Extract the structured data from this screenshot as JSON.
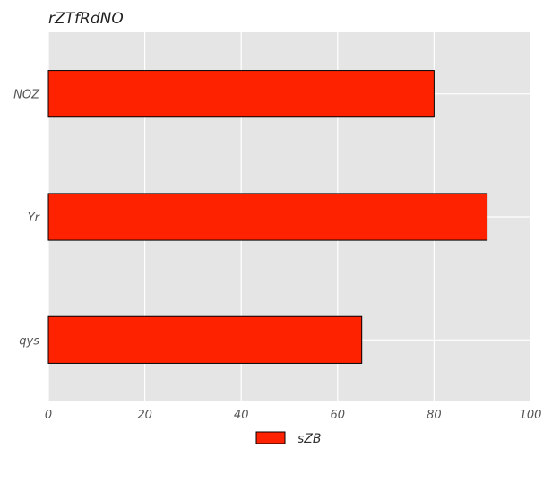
{
  "chart_data": {
    "type": "bar",
    "orientation": "horizontal",
    "title": "rZTfRdNO",
    "xlabel": "",
    "ylabel": "",
    "categories": [
      "NOZ",
      "Yr",
      "qys"
    ],
    "series": [
      {
        "name": "sZB",
        "values": [
          80,
          91,
          65
        ],
        "color": "#ff2200"
      }
    ],
    "xlim": [
      0,
      100
    ],
    "xticks": [
      0,
      20,
      40,
      60,
      80,
      100
    ],
    "grid": true,
    "legend": "bottom-center",
    "colors": {
      "background": "#e5e5e5",
      "grid": "#ffffff",
      "bar": "#ff2200",
      "bar_edge": "#000000"
    }
  }
}
